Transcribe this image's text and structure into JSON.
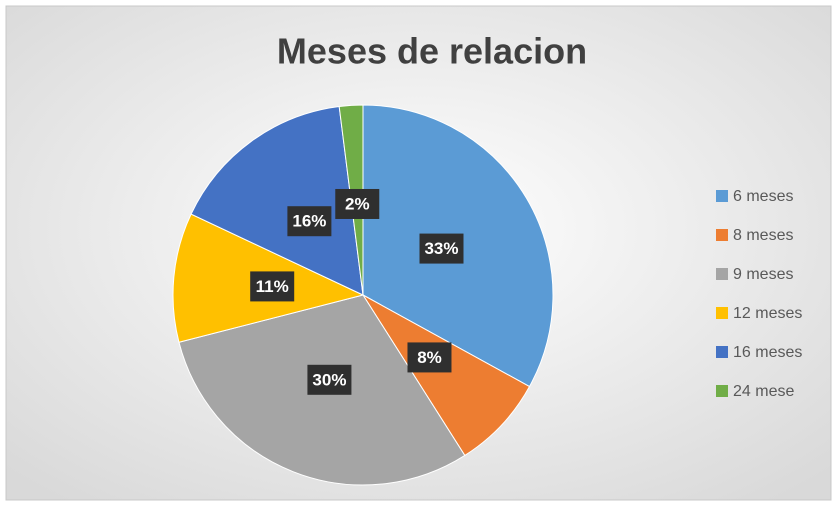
{
  "chart_data": {
    "type": "pie",
    "title": "Meses de relacion",
    "categories": [
      "6 meses",
      "8 meses",
      "9 meses",
      "12 meses",
      "16 meses",
      "24 mese"
    ],
    "values": [
      33,
      8,
      30,
      11,
      16,
      2
    ],
    "value_labels": [
      "33%",
      "8%",
      "30%",
      "11%",
      "16%",
      "2%"
    ],
    "colors": [
      "#5b9bd5",
      "#ed7d31",
      "#a5a5a5",
      "#ffc000",
      "#4472c4",
      "#70ad47"
    ],
    "legend": "right"
  }
}
